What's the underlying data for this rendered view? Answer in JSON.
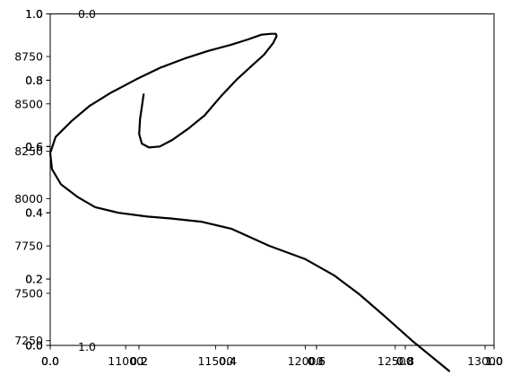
{
  "chart_data": [
    {
      "type": "line",
      "role": "spiral-curve",
      "x": [
        12800,
        12600,
        12440,
        12300,
        12160,
        12000,
        11800,
        11590,
        11420,
        11250,
        11120,
        10960,
        10830,
        10730,
        10640,
        10590,
        10580,
        10610,
        10700,
        10800,
        10920,
        11060,
        11190,
        11330,
        11460,
        11580,
        11680,
        11755,
        11810,
        11835,
        11840,
        11820,
        11770,
        11700,
        11620,
        11530,
        11440,
        11350,
        11260,
        11190,
        11130,
        11090,
        11075,
        11080,
        11100
      ],
      "y": [
        7090,
        7245,
        7380,
        7495,
        7595,
        7680,
        7750,
        7840,
        7878,
        7895,
        7905,
        7925,
        7955,
        8010,
        8075,
        8155,
        8240,
        8325,
        8410,
        8490,
        8560,
        8630,
        8690,
        8740,
        8780,
        8810,
        8840,
        8865,
        8870,
        8870,
        8858,
        8820,
        8760,
        8700,
        8630,
        8540,
        8440,
        8370,
        8310,
        8275,
        8270,
        8290,
        8340,
        8420,
        8550
      ],
      "xlim": [
        10580,
        13050
      ],
      "ylim": [
        7225,
        8975
      ],
      "x_ticks": [
        11000,
        11500,
        12000,
        12500,
        13000
      ],
      "x_tick_labels": [
        "11000",
        "11500",
        "12000",
        "12500",
        "13000"
      ],
      "y_ticks": [
        7250,
        7500,
        7750,
        8000,
        8250,
        8500,
        8750
      ],
      "y_tick_labels": [
        "7250",
        "7500",
        "7750",
        "8000",
        "8250",
        "8500",
        "8750"
      ],
      "line_color": "#000000"
    },
    {
      "type": "line",
      "role": "empty-overlay-axes",
      "x": [],
      "y": [],
      "xlim": [
        0,
        1
      ],
      "ylim": [
        0,
        1
      ],
      "x_ticks": [
        0.0,
        0.2,
        0.4,
        0.6,
        0.8,
        1.0
      ],
      "x_tick_labels": [
        "0.0",
        "0.2",
        "0.4",
        "0.6",
        "0.8",
        "1.0"
      ],
      "y_ticks": [
        0.0,
        0.2,
        0.4,
        0.6,
        0.8,
        1.0
      ],
      "y_tick_labels": [
        "0.0",
        "0.2",
        "0.4",
        "0.6",
        "0.8",
        "1.0"
      ],
      "count": 2
    },
    {
      "type": "line",
      "role": "empty-inset-axes",
      "x": [],
      "y": [],
      "xlim": [
        0,
        1
      ],
      "ylim": [
        0,
        1
      ],
      "x_ticks": [
        0.0,
        0.2,
        0.4,
        0.6,
        0.8,
        1.0
      ],
      "x_tick_labels": [
        "0.0",
        "0.2",
        "0.4",
        "0.6",
        "0.8",
        "1.0"
      ],
      "y_ticks": [
        0.0,
        0.2,
        0.4,
        0.6,
        0.8,
        1.0
      ],
      "y_tick_labels": [
        "0.0",
        "0.2",
        "0.4",
        "0.6",
        "0.8",
        "1.0"
      ]
    }
  ]
}
